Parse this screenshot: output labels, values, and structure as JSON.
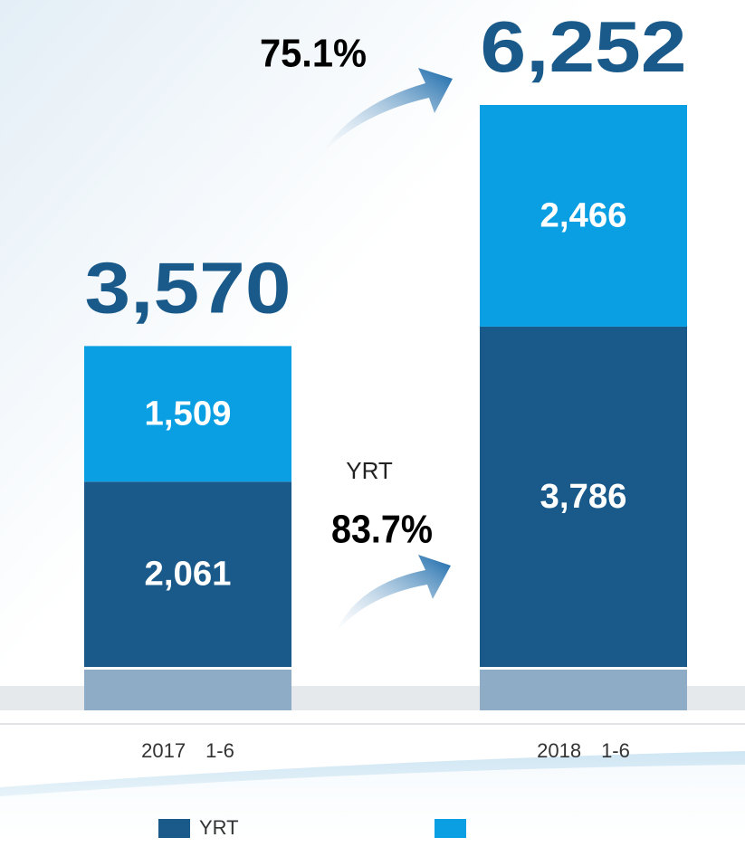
{
  "chart_data": {
    "type": "stacked-bar",
    "categories": [
      "2017　1-6",
      "2018　1-6"
    ],
    "series": [
      {
        "name": "YRT",
        "color": "#1a5a8a",
        "values": [
          2061,
          3786
        ],
        "value_labels": [
          "2,061",
          "3,786"
        ]
      },
      {
        "color": "#0a9fe3",
        "values": [
          1509,
          2466
        ],
        "value_labels": [
          "1,509",
          "2,466"
        ]
      }
    ],
    "totals": [
      3570,
      6252
    ],
    "total_labels": [
      "3,570",
      "6,252"
    ],
    "total_growth": "75.1%",
    "yrt_growth_label": "YRT",
    "yrt_growth": "83.7%"
  }
}
